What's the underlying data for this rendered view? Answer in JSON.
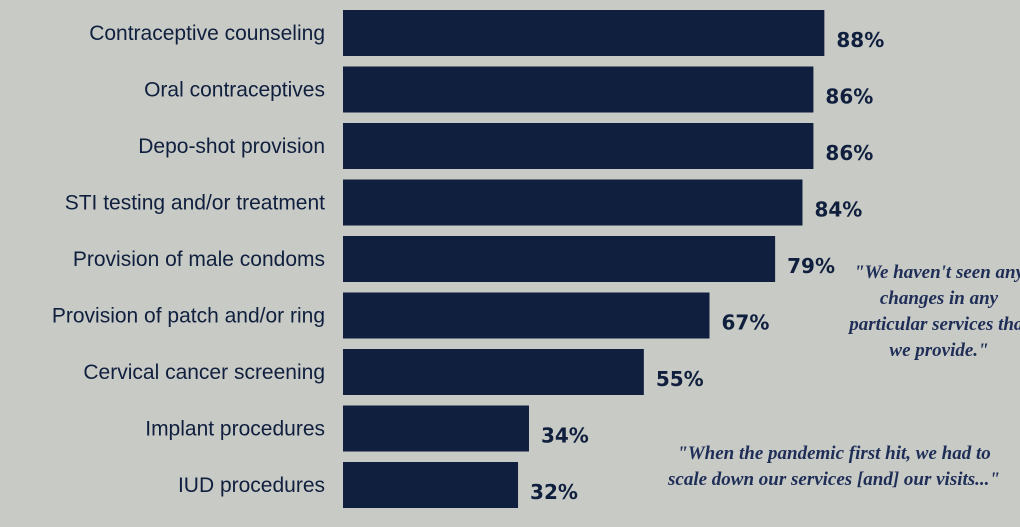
{
  "chart_data": {
    "type": "bar",
    "orientation": "horizontal",
    "categories": [
      "Contraceptive counseling",
      "Oral contraceptives",
      "Depo-shot provision",
      "STI testing and/or treatment",
      "Provision of male condoms",
      "Provision of patch and/or ring",
      "Cervical cancer screening",
      "Implant procedures",
      "IUD procedures"
    ],
    "values": [
      88,
      86,
      86,
      84,
      79,
      67,
      55,
      34,
      32
    ],
    "value_labels": [
      "88%",
      "86%",
      "86%",
      "84%",
      "79%",
      "67%",
      "55%",
      "34%",
      "32%"
    ],
    "unit": "%",
    "xlim": [
      0,
      100
    ],
    "grid": false,
    "legend": "none",
    "bar_color": "#0f1f3d"
  },
  "quotes": [
    "\"We haven't seen any changes in any particular services that we provide.\"",
    "\"When the pandemic first hit, we had to scale down our services [and] our visits...\""
  ]
}
